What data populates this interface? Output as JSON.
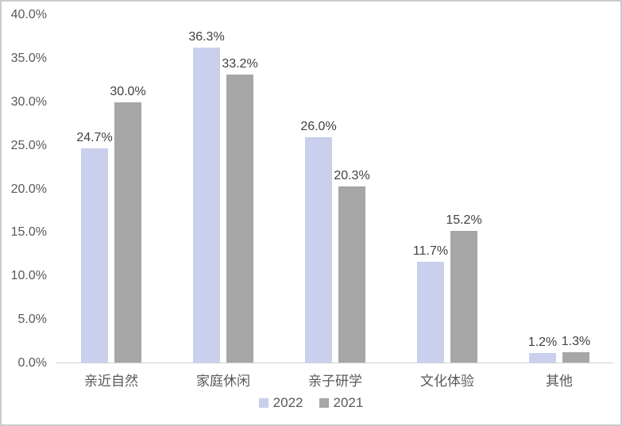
{
  "chart_data": {
    "type": "bar",
    "title": "",
    "categories": [
      "亲近自然",
      "家庭休闲",
      "亲子研学",
      "文化体验",
      "其他"
    ],
    "series": [
      {
        "name": "2022",
        "color": "#c9cfec",
        "values": [
          24.7,
          36.3,
          26.0,
          11.7,
          1.2
        ],
        "labels": [
          "24.7%",
          "36.3%",
          "26.0%",
          "11.7%",
          "1.2%"
        ]
      },
      {
        "name": "2021",
        "color": "#a6a6a6",
        "values": [
          30.0,
          33.2,
          20.3,
          15.2,
          1.3
        ],
        "labels": [
          "30.0%",
          "33.2%",
          "20.3%",
          "15.2%",
          "1.3%"
        ]
      }
    ],
    "xlabel": "",
    "ylabel": "",
    "ylim": [
      0,
      40
    ],
    "y_ticks": [
      "40.0%",
      "35.0%",
      "30.0%",
      "25.0%",
      "20.0%",
      "15.0%",
      "10.0%",
      "5.0%",
      "0.0%"
    ],
    "grid": false,
    "legend_position": "bottom",
    "legend": [
      "2022",
      "2021"
    ]
  },
  "colors": {
    "series_2022": "#c9cfec",
    "series_2021": "#a6a6a6",
    "data_label_text": "#404040",
    "axis_text": "#595959",
    "axis_line": "#d0d0d0",
    "frame_border": "#cbcbcb"
  }
}
